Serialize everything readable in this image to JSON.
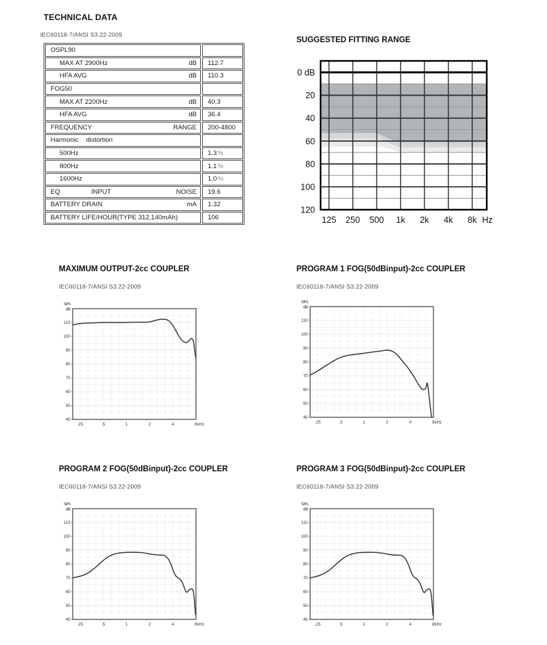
{
  "technical_data": {
    "title": "TECHNICAL DATA",
    "standard": "IEC60118-7/ANSI S3.22-2009",
    "table": {
      "rows": [
        {
          "label": "OSPL90",
          "unit": "",
          "value": ""
        },
        {
          "label": "MAX AT 2900Hz",
          "indent": true,
          "unit": "dB",
          "value": "112.7"
        },
        {
          "label": "HFA AVG",
          "indent": true,
          "unit": "dB",
          "value": "110.3"
        },
        {
          "label": "FOG50",
          "unit": "",
          "value": ""
        },
        {
          "label": "MAX AT 2200Hz",
          "indent": true,
          "unit": "dB",
          "value": "40.3"
        },
        {
          "label": "HFA AVG",
          "indent": true,
          "unit": "dB",
          "value": "36.4"
        },
        {
          "label": "FREQUENCY",
          "unit": "RANGE",
          "value": "200-4800"
        },
        {
          "label": "Harmonic    distortion",
          "unit": "",
          "value": ""
        },
        {
          "label": "500Hz",
          "indent": true,
          "unit": "",
          "value": "1.3",
          "suffix": "%"
        },
        {
          "label": "800Hz",
          "indent": true,
          "unit": "",
          "value": "1.1",
          "suffix": "%"
        },
        {
          "label": "1600Hz",
          "indent": true,
          "unit": "",
          "value": "1.0",
          "suffix": "%"
        },
        {
          "label": "EQ",
          "mid": "INPUT",
          "unit": "NOISE",
          "value": "19.6"
        },
        {
          "label": "BATTERY DRAIN",
          "unit": "mA",
          "value": "1.32"
        },
        {
          "label": "BATTERY LIFE/HOUR(TYPE 312,140mAh)",
          "unit": "",
          "value": "106"
        }
      ]
    }
  },
  "chart_data": [
    {
      "id": "suggested-fitting-range",
      "type": "area",
      "title": "SUGGESTED FITTING RANGE",
      "x_unit": "Hz",
      "x_tick_labels": [
        "125",
        "250",
        "500",
        "1k",
        "2k",
        "4k",
        "8k"
      ],
      "x_tick_freqs_hz": [
        125,
        250,
        500,
        1000,
        2000,
        4000,
        8000
      ],
      "x_range_hz": [
        98,
        12200
      ],
      "y_tick_labels": [
        "0 dB",
        "20",
        "40",
        "60",
        "80",
        "100",
        "120"
      ],
      "y_tick_values": [
        0,
        20,
        40,
        60,
        80,
        100,
        120
      ],
      "ylim": [
        -10,
        120
      ],
      "grid": "on",
      "region": {
        "color": "#b1b5b8",
        "top_db": 10,
        "bands": [
          {
            "opacity": 1.0,
            "bottom": [
              [
                98,
                53
              ],
              [
                500,
                53
              ],
              [
                900,
                61
              ],
              [
                12200,
                61
              ]
            ]
          },
          {
            "opacity": 0.55,
            "bottom": [
              [
                98,
                58
              ],
              [
                550,
                58
              ],
              [
                950,
                65.5
              ],
              [
                12200,
                65.5
              ]
            ]
          },
          {
            "opacity": 0.28,
            "bottom": [
              [
                98,
                65
              ],
              [
                600,
                65
              ],
              [
                1000,
                70
              ],
              [
                12200,
                70
              ]
            ]
          }
        ]
      }
    },
    {
      "id": "maximum-output",
      "type": "line",
      "title": "MAXIMUM OUTPUT-2cc COUPLER",
      "standard": "IEC60118-7/ANSI S3.22-2009",
      "ylabel_lines": [
        "SPL",
        "dB"
      ],
      "x": {
        "min": 0.2,
        "max": 8,
        "labels": [
          {
            "f": 0.25,
            "t": ".25"
          },
          {
            "f": 0.5,
            "t": ".5"
          },
          {
            "f": 1,
            "t": "1"
          },
          {
            "f": 2,
            "t": "2"
          },
          {
            "f": 4,
            "t": "4"
          },
          {
            "f": 8,
            "t": "8kHz"
          }
        ],
        "minor": [
          0.2,
          0.25,
          0.315,
          0.4,
          0.5,
          0.63,
          0.8,
          1,
          1.25,
          1.6,
          2,
          2.5,
          3.15,
          4,
          5,
          6.3,
          8
        ]
      },
      "y": {
        "top": 120,
        "bottom": 40,
        "labels": [
          110,
          100,
          90,
          80,
          70,
          60,
          50,
          40
        ],
        "minor_step": 5
      },
      "points": [
        [
          0.2,
          108.3
        ],
        [
          0.25,
          109.2
        ],
        [
          0.3,
          109.6
        ],
        [
          0.4,
          109.8
        ],
        [
          0.5,
          110.0
        ],
        [
          0.65,
          110.0
        ],
        [
          0.8,
          110.0
        ],
        [
          1.0,
          110.1
        ],
        [
          1.3,
          110.2
        ],
        [
          1.6,
          110.2
        ],
        [
          1.9,
          110.3
        ],
        [
          2.1,
          110.7
        ],
        [
          2.4,
          111.6
        ],
        [
          2.7,
          112.2
        ],
        [
          3.0,
          112.4
        ],
        [
          3.3,
          112.1
        ],
        [
          3.6,
          111.0
        ],
        [
          3.9,
          108.8
        ],
        [
          4.3,
          105.0
        ],
        [
          4.7,
          101.0
        ],
        [
          5.1,
          98.0
        ],
        [
          5.5,
          96.2
        ],
        [
          5.9,
          95.5
        ],
        [
          6.3,
          96.0
        ],
        [
          6.7,
          97.8
        ],
        [
          7.0,
          98.6
        ],
        [
          7.3,
          97.5
        ],
        [
          7.5,
          95.0
        ],
        [
          7.7,
          90.0
        ],
        [
          7.9,
          85.5
        ],
        [
          8.0,
          84.0
        ]
      ]
    },
    {
      "id": "program-1-fog",
      "type": "line",
      "title": "PROGRAM 1 FOG(50dBinput)-2cc COUPLER",
      "standard": "IEC60118-7/ANSI S3.22-2009",
      "ylabel_lines": [
        "SPL",
        "dB"
      ],
      "x": {
        "min": 0.2,
        "max": 8,
        "labels": [
          {
            "f": 0.25,
            "t": ".25"
          },
          {
            "f": 0.5,
            "t": ".5"
          },
          {
            "f": 1,
            "t": "1"
          },
          {
            "f": 2,
            "t": "2"
          },
          {
            "f": 4,
            "t": "4"
          },
          {
            "f": 8,
            "t": "8kHz"
          }
        ],
        "minor": [
          0.2,
          0.25,
          0.315,
          0.4,
          0.5,
          0.63,
          0.8,
          1,
          1.25,
          1.6,
          2,
          2.5,
          3.15,
          4,
          5,
          6.3,
          8
        ]
      },
      "y": {
        "top": 120,
        "bottom": 40,
        "labels": [
          110,
          100,
          90,
          80,
          70,
          60,
          50,
          40
        ],
        "minor_step": 5
      },
      "points": [
        [
          0.2,
          70.5
        ],
        [
          0.25,
          73.5
        ],
        [
          0.3,
          76.3
        ],
        [
          0.35,
          78.7
        ],
        [
          0.4,
          80.7
        ],
        [
          0.45,
          82.2
        ],
        [
          0.5,
          83.3
        ],
        [
          0.6,
          84.6
        ],
        [
          0.7,
          85.2
        ],
        [
          0.8,
          85.6
        ],
        [
          0.9,
          86.0
        ],
        [
          1.0,
          86.3
        ],
        [
          1.2,
          86.9
        ],
        [
          1.4,
          87.4
        ],
        [
          1.6,
          87.8
        ],
        [
          1.8,
          88.2
        ],
        [
          2.0,
          88.5
        ],
        [
          2.2,
          88.2
        ],
        [
          2.5,
          86.8
        ],
        [
          2.8,
          84.3
        ],
        [
          3.1,
          81.2
        ],
        [
          3.5,
          77.8
        ],
        [
          3.9,
          74.2
        ],
        [
          4.3,
          70.8
        ],
        [
          4.7,
          67.2
        ],
        [
          5.1,
          63.8
        ],
        [
          5.5,
          61.2
        ],
        [
          5.9,
          60.0
        ],
        [
          6.2,
          60.4
        ],
        [
          6.4,
          61.3
        ],
        [
          6.6,
          64.8
        ],
        [
          6.8,
          62.0
        ],
        [
          7.1,
          53.0
        ],
        [
          7.4,
          44.0
        ],
        [
          7.6,
          40.0
        ]
      ]
    },
    {
      "id": "program-2-fog",
      "type": "line",
      "title": "PROGRAM 2 FOG(50dBinput)-2cc COUPLER",
      "standard": "IEC60118-7/ANSI S3.22-2009",
      "ylabel_lines": [
        "SPL",
        "dB"
      ],
      "x": {
        "min": 0.2,
        "max": 8,
        "labels": [
          {
            "f": 0.25,
            "t": ".25"
          },
          {
            "f": 0.5,
            "t": ".5"
          },
          {
            "f": 1,
            "t": "1"
          },
          {
            "f": 2,
            "t": "2"
          },
          {
            "f": 4,
            "t": "4"
          },
          {
            "f": 8,
            "t": "8kHz"
          }
        ],
        "minor": [
          0.2,
          0.25,
          0.315,
          0.4,
          0.5,
          0.63,
          0.8,
          1,
          1.25,
          1.6,
          2,
          2.5,
          3.15,
          4,
          5,
          6.3,
          8
        ]
      },
      "y": {
        "top": 120,
        "bottom": 40,
        "labels": [
          110,
          100,
          90,
          80,
          70,
          60,
          50,
          40
        ],
        "minor_step": 5
      },
      "points": [
        [
          0.2,
          70.0
        ],
        [
          0.25,
          71.2
        ],
        [
          0.3,
          72.8
        ],
        [
          0.35,
          75.2
        ],
        [
          0.4,
          77.8
        ],
        [
          0.45,
          80.4
        ],
        [
          0.5,
          82.6
        ],
        [
          0.55,
          84.4
        ],
        [
          0.6,
          85.7
        ],
        [
          0.7,
          87.2
        ],
        [
          0.8,
          87.9
        ],
        [
          0.9,
          88.2
        ],
        [
          1.0,
          88.4
        ],
        [
          1.2,
          88.5
        ],
        [
          1.4,
          88.4
        ],
        [
          1.6,
          88.2
        ],
        [
          1.8,
          87.8
        ],
        [
          2.0,
          87.3
        ],
        [
          2.2,
          86.9
        ],
        [
          2.5,
          86.6
        ],
        [
          2.8,
          86.5
        ],
        [
          3.0,
          86.4
        ],
        [
          3.2,
          85.8
        ],
        [
          3.5,
          83.6
        ],
        [
          3.8,
          79.5
        ],
        [
          4.1,
          74.5
        ],
        [
          4.4,
          71.3
        ],
        [
          4.7,
          70.0
        ],
        [
          5.0,
          68.8
        ],
        [
          5.3,
          66.8
        ],
        [
          5.6,
          63.5
        ],
        [
          5.9,
          60.2
        ],
        [
          6.1,
          59.6
        ],
        [
          6.3,
          60.3
        ],
        [
          6.6,
          61.6
        ],
        [
          6.9,
          62.0
        ],
        [
          7.2,
          61.8
        ],
        [
          7.4,
          60.0
        ],
        [
          7.6,
          55.0
        ],
        [
          7.8,
          47.0
        ],
        [
          7.9,
          43.5
        ]
      ]
    },
    {
      "id": "program-3-fog",
      "type": "line",
      "title": "PROGRAM 3 FOG(50dBinput)-2cc COUPLER",
      "standard": "IEC60118-7/ANSI S3.22-2009",
      "ylabel_lines": [
        "SPL",
        "dB"
      ],
      "x": {
        "min": 0.2,
        "max": 8,
        "labels": [
          {
            "f": 0.25,
            "t": ".25"
          },
          {
            "f": 0.5,
            "t": ".5"
          },
          {
            "f": 1,
            "t": "1"
          },
          {
            "f": 2,
            "t": "2"
          },
          {
            "f": 4,
            "t": "4"
          },
          {
            "f": 8,
            "t": "8kHz"
          }
        ],
        "minor": [
          0.2,
          0.25,
          0.315,
          0.4,
          0.5,
          0.63,
          0.8,
          1,
          1.25,
          1.6,
          2,
          2.5,
          3.15,
          4,
          5,
          6.3,
          8
        ]
      },
      "y": {
        "top": 120,
        "bottom": 40,
        "labels": [
          110,
          100,
          90,
          80,
          70,
          60,
          50,
          40
        ],
        "minor_step": 5
      },
      "points": [
        [
          0.2,
          70.0
        ],
        [
          0.25,
          71.3
        ],
        [
          0.3,
          73.0
        ],
        [
          0.35,
          75.4
        ],
        [
          0.4,
          78.0
        ],
        [
          0.45,
          80.6
        ],
        [
          0.5,
          82.8
        ],
        [
          0.55,
          84.5
        ],
        [
          0.6,
          85.8
        ],
        [
          0.7,
          87.3
        ],
        [
          0.8,
          88.0
        ],
        [
          0.9,
          88.3
        ],
        [
          1.0,
          88.4
        ],
        [
          1.2,
          88.5
        ],
        [
          1.4,
          88.4
        ],
        [
          1.6,
          88.1
        ],
        [
          1.8,
          87.7
        ],
        [
          2.0,
          87.2
        ],
        [
          2.2,
          86.8
        ],
        [
          2.5,
          86.5
        ],
        [
          2.8,
          86.4
        ],
        [
          3.0,
          86.3
        ],
        [
          3.2,
          85.7
        ],
        [
          3.5,
          83.4
        ],
        [
          3.8,
          79.2
        ],
        [
          4.1,
          74.2
        ],
        [
          4.4,
          71.0
        ],
        [
          4.7,
          69.8
        ],
        [
          5.0,
          68.5
        ],
        [
          5.3,
          66.5
        ],
        [
          5.6,
          63.2
        ],
        [
          5.9,
          60.0
        ],
        [
          6.1,
          59.4
        ],
        [
          6.3,
          60.2
        ],
        [
          6.6,
          61.5
        ],
        [
          6.9,
          62.0
        ],
        [
          7.2,
          61.7
        ],
        [
          7.4,
          59.8
        ],
        [
          7.6,
          54.5
        ],
        [
          7.8,
          46.5
        ],
        [
          7.9,
          43.0
        ]
      ]
    }
  ],
  "colors": {
    "curve": "#2e2e2e",
    "grid_minor": "#cfcfcf",
    "grid_label_line": "#b2b2b2",
    "plot_border": "#6e6e6e",
    "fit_minor": "#9a9a9a",
    "fit_major": "#2b2b2b",
    "fit_zero": "#000000",
    "region_gray": "#b1b5b8"
  }
}
